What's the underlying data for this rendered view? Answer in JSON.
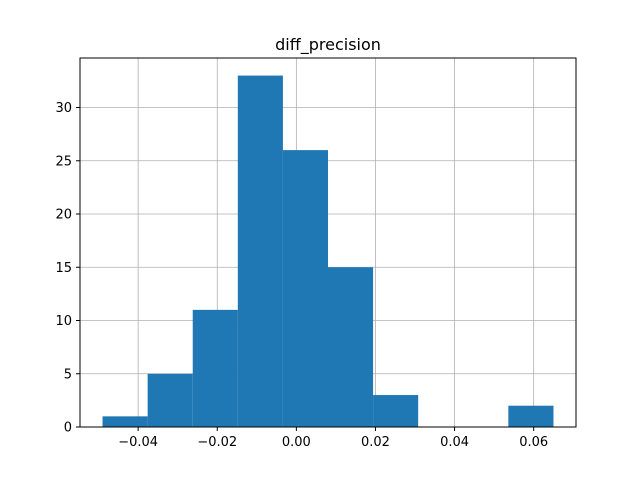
{
  "chart_data": {
    "type": "bar",
    "title": "diff_precision",
    "xlabel": "",
    "ylabel": "",
    "bins": [
      {
        "x0": -0.049,
        "x1": -0.0376,
        "count": 1
      },
      {
        "x0": -0.0376,
        "x1": -0.0262,
        "count": 5
      },
      {
        "x0": -0.0262,
        "x1": -0.0148,
        "count": 11
      },
      {
        "x0": -0.0148,
        "x1": -0.0034,
        "count": 33
      },
      {
        "x0": -0.0034,
        "x1": 0.008,
        "count": 26
      },
      {
        "x0": 0.008,
        "x1": 0.0194,
        "count": 15
      },
      {
        "x0": 0.0194,
        "x1": 0.0308,
        "count": 3
      },
      {
        "x0": 0.0308,
        "x1": 0.0422,
        "count": 0
      },
      {
        "x0": 0.0422,
        "x1": 0.0536,
        "count": 0
      },
      {
        "x0": 0.0536,
        "x1": 0.065,
        "count": 2
      }
    ],
    "xlim": [
      -0.0547,
      0.0707
    ],
    "ylim": [
      0,
      34.65
    ],
    "x_ticks": [
      {
        "value": -0.04,
        "label": "−0.04"
      },
      {
        "value": -0.02,
        "label": "−0.02"
      },
      {
        "value": 0.0,
        "label": "0.00"
      },
      {
        "value": 0.02,
        "label": "0.02"
      },
      {
        "value": 0.04,
        "label": "0.04"
      },
      {
        "value": 0.06,
        "label": "0.06"
      }
    ],
    "y_ticks": [
      {
        "value": 0,
        "label": "0"
      },
      {
        "value": 5,
        "label": "5"
      },
      {
        "value": 10,
        "label": "10"
      },
      {
        "value": 15,
        "label": "15"
      },
      {
        "value": 20,
        "label": "20"
      },
      {
        "value": 25,
        "label": "25"
      },
      {
        "value": 30,
        "label": "30"
      }
    ],
    "grid": true,
    "bar_color": "#1f77b4",
    "grid_color": "#b0b0b0"
  }
}
